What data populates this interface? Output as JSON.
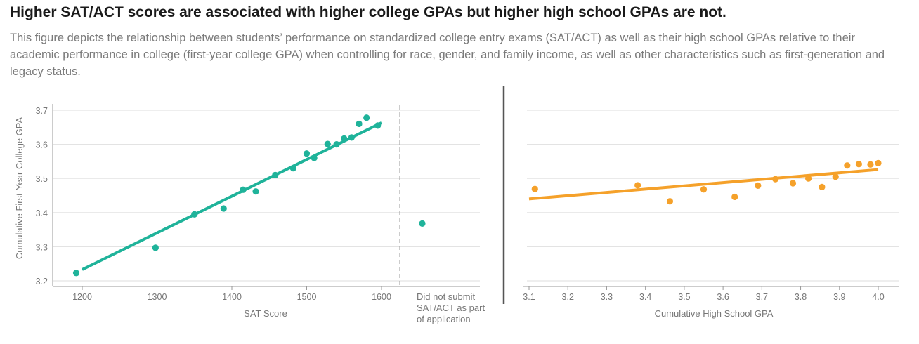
{
  "title": "Higher SAT/ACT scores are associated with higher college GPAs but higher high school GPAs are not.",
  "subtitle": "This figure depicts the relationship between students’ performance on standardized college entry exams (SAT/ACT) as well as their high school GPAs relative to their academic performance in college (first-year college GPA) when controlling for race, gender, and family income, as well as other characteristics such as first-generation and legacy status.",
  "chart_data": [
    {
      "type": "scatter",
      "xlabel": "SAT Score",
      "ylabel": "Cumulative First-Year College GPA",
      "color": "#1fb39a",
      "xlim": [
        1160,
        1630
      ],
      "ylim": [
        3.2,
        3.7
      ],
      "xticks": [
        1200,
        1300,
        1400,
        1500,
        1600
      ],
      "yticks": [
        3.2,
        3.3,
        3.4,
        3.5,
        3.6,
        3.7
      ],
      "grid": true,
      "points": [
        [
          1192,
          3.223
        ],
        [
          1298,
          3.297
        ],
        [
          1350,
          3.395
        ],
        [
          1389,
          3.412
        ],
        [
          1415,
          3.467
        ],
        [
          1432,
          3.462
        ],
        [
          1458,
          3.51
        ],
        [
          1482,
          3.53
        ],
        [
          1500,
          3.573
        ],
        [
          1510,
          3.56
        ],
        [
          1528,
          3.601
        ],
        [
          1540,
          3.6
        ],
        [
          1550,
          3.617
        ],
        [
          1560,
          3.62
        ],
        [
          1570,
          3.66
        ],
        [
          1580,
          3.678
        ],
        [
          1595,
          3.655
        ]
      ],
      "fit": [
        [
          1200,
          3.233
        ],
        [
          1600,
          3.663
        ]
      ],
      "extra_category": {
        "label": "Did not submit SAT/ACT as part of application",
        "value": 3.368
      }
    },
    {
      "type": "scatter",
      "xlabel": "Cumulative High School GPA",
      "color": "#f5a12a",
      "xlim": [
        3.08,
        4.05
      ],
      "ylim": [
        3.2,
        3.7
      ],
      "xticks": [
        "3.1",
        "3.2",
        "3.3",
        "3.4",
        "3.5",
        "3.6",
        "3.7",
        "3.8",
        "3.9",
        "4.0"
      ],
      "grid": true,
      "points": [
        [
          3.115,
          3.469
        ],
        [
          3.38,
          3.48
        ],
        [
          3.463,
          3.433
        ],
        [
          3.55,
          3.468
        ],
        [
          3.63,
          3.446
        ],
        [
          3.69,
          3.479
        ],
        [
          3.735,
          3.498
        ],
        [
          3.78,
          3.486
        ],
        [
          3.82,
          3.5
        ],
        [
          3.855,
          3.475
        ],
        [
          3.89,
          3.505
        ],
        [
          3.92,
          3.538
        ],
        [
          3.95,
          3.542
        ],
        [
          3.98,
          3.541
        ],
        [
          4.0,
          3.545
        ]
      ],
      "fit": [
        [
          3.1,
          3.44
        ],
        [
          4.0,
          3.526
        ]
      ]
    }
  ]
}
